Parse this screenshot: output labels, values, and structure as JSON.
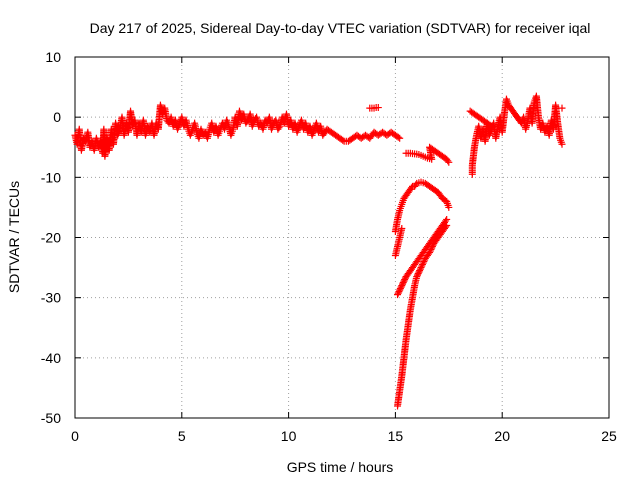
{
  "chart_data": {
    "type": "scatter",
    "title": "Day 217 of 2025, Sidereal Day-to-day VTEC variation (SDTVAR) for receiver iqal",
    "xlabel": "GPS time / hours",
    "ylabel": "SDTVAR / TECUs",
    "xlim": [
      0,
      25
    ],
    "ylim": [
      -50,
      10
    ],
    "x_ticks": [
      0,
      5,
      10,
      15,
      20,
      25
    ],
    "y_ticks": [
      10,
      0,
      -10,
      -20,
      -30,
      -40,
      -50
    ],
    "x_tick_labels": [
      "0",
      "5",
      "10",
      "15",
      "20",
      "25"
    ],
    "y_tick_labels": [
      "10",
      "0",
      "-10",
      "-20",
      "-30",
      "-40",
      "-50"
    ],
    "grid": true,
    "legend": "none",
    "marker": "plus",
    "series": [
      {
        "name": "SDTVAR",
        "color": "#ff0000",
        "points": [
          [
            0.0,
            -3.0
          ],
          [
            0.1,
            -4.5
          ],
          [
            0.2,
            -2.0
          ],
          [
            0.3,
            -5.5
          ],
          [
            0.4,
            -3.5
          ],
          [
            0.5,
            -4.0
          ],
          [
            0.6,
            -2.5
          ],
          [
            0.7,
            -5.0
          ],
          [
            0.8,
            -4.0
          ],
          [
            0.9,
            -5.5
          ],
          [
            1.0,
            -3.5
          ],
          [
            1.1,
            -5.0
          ],
          [
            1.2,
            -4.0
          ],
          [
            1.3,
            -6.0
          ],
          [
            1.35,
            -2.0
          ],
          [
            1.4,
            -6.5
          ],
          [
            1.5,
            -3.5
          ],
          [
            1.6,
            -5.5
          ],
          [
            1.7,
            -2.0
          ],
          [
            1.8,
            -4.5
          ],
          [
            1.9,
            -1.0
          ],
          [
            2.0,
            -3.0
          ],
          [
            2.1,
            -2.0
          ],
          [
            2.2,
            0.0
          ],
          [
            2.3,
            -3.0
          ],
          [
            2.4,
            -1.0
          ],
          [
            2.5,
            -2.5
          ],
          [
            2.6,
            1.0
          ],
          [
            2.7,
            -1.5
          ],
          [
            2.8,
            -0.5
          ],
          [
            2.9,
            -3.0
          ],
          [
            3.0,
            -1.0
          ],
          [
            3.1,
            -2.5
          ],
          [
            3.2,
            -0.5
          ],
          [
            3.3,
            -3.0
          ],
          [
            3.4,
            -1.5
          ],
          [
            3.5,
            -2.5
          ],
          [
            3.6,
            -1.0
          ],
          [
            3.7,
            -3.0
          ],
          [
            3.8,
            -1.0
          ],
          [
            3.9,
            -2.0
          ],
          [
            4.0,
            2.0
          ],
          [
            4.1,
            0.5
          ],
          [
            4.2,
            1.5
          ],
          [
            4.3,
            -0.5
          ],
          [
            4.4,
            -1.0
          ],
          [
            4.5,
            0.0
          ],
          [
            4.6,
            -1.5
          ],
          [
            4.7,
            -0.5
          ],
          [
            4.8,
            -2.0
          ],
          [
            4.9,
            -1.0
          ],
          [
            5.0,
            0.0
          ],
          [
            5.1,
            -1.5
          ],
          [
            5.2,
            -0.5
          ],
          [
            5.3,
            -2.0
          ],
          [
            5.4,
            -3.0
          ],
          [
            5.5,
            -2.0
          ],
          [
            5.6,
            -1.0
          ],
          [
            5.7,
            -2.5
          ],
          [
            5.8,
            -3.5
          ],
          [
            5.9,
            -2.0
          ],
          [
            6.0,
            -3.0
          ],
          [
            6.1,
            -2.5
          ],
          [
            6.2,
            -3.5
          ],
          [
            6.3,
            -2.0
          ],
          [
            6.4,
            -1.0
          ],
          [
            6.5,
            -2.5
          ],
          [
            6.6,
            -1.5
          ],
          [
            6.7,
            -3.0
          ],
          [
            6.8,
            -2.0
          ],
          [
            6.9,
            -1.0
          ],
          [
            7.0,
            -2.0
          ],
          [
            7.1,
            -0.5
          ],
          [
            7.2,
            -1.5
          ],
          [
            7.3,
            -3.0
          ],
          [
            7.4,
            -2.0
          ],
          [
            7.5,
            0.0
          ],
          [
            7.6,
            -1.5
          ],
          [
            7.7,
            1.0
          ],
          [
            7.8,
            -0.5
          ],
          [
            7.9,
            0.5
          ],
          [
            8.0,
            -1.0
          ],
          [
            8.1,
            -0.5
          ],
          [
            8.2,
            0.5
          ],
          [
            8.3,
            -1.5
          ],
          [
            8.4,
            -0.5
          ],
          [
            8.5,
            0.0
          ],
          [
            8.6,
            -1.5
          ],
          [
            8.7,
            -1.0
          ],
          [
            8.8,
            -2.0
          ],
          [
            8.9,
            -0.5
          ],
          [
            9.0,
            -1.0
          ],
          [
            9.1,
            0.0
          ],
          [
            9.2,
            -2.0
          ],
          [
            9.3,
            -1.0
          ],
          [
            9.4,
            -0.5
          ],
          [
            9.5,
            -2.0
          ],
          [
            9.6,
            -1.5
          ],
          [
            9.7,
            0.0
          ],
          [
            9.8,
            -1.0
          ],
          [
            9.9,
            0.5
          ],
          [
            10.0,
            -1.5
          ],
          [
            10.1,
            -0.5
          ],
          [
            10.2,
            -2.0
          ],
          [
            10.3,
            -1.0
          ],
          [
            10.4,
            -2.5
          ],
          [
            10.5,
            -1.5
          ],
          [
            10.6,
            -0.5
          ],
          [
            10.7,
            -2.0
          ],
          [
            10.8,
            -1.0
          ],
          [
            10.9,
            -2.5
          ],
          [
            11.0,
            -1.5
          ],
          [
            11.1,
            -3.0
          ],
          [
            11.2,
            -2.0
          ],
          [
            11.3,
            -1.0
          ],
          [
            11.4,
            -2.5
          ],
          [
            11.5,
            -1.5
          ],
          [
            11.6,
            -3.0
          ],
          [
            11.7,
            -2.5
          ],
          [
            11.8,
            -2.0
          ],
          [
            12.0,
            -2.5
          ],
          [
            12.2,
            -3.0
          ],
          [
            12.4,
            -3.5
          ],
          [
            12.6,
            -4.0
          ],
          [
            12.8,
            -4.0
          ],
          [
            13.0,
            -3.5
          ],
          [
            13.2,
            -3.0
          ],
          [
            13.4,
            -3.5
          ],
          [
            13.6,
            -3.0
          ],
          [
            13.8,
            -3.5
          ],
          [
            14.0,
            -2.5
          ],
          [
            14.2,
            -3.0
          ],
          [
            14.4,
            -2.5
          ],
          [
            14.6,
            -3.0
          ],
          [
            14.8,
            -2.5
          ],
          [
            15.0,
            -3.0
          ],
          [
            15.2,
            -3.5
          ],
          [
            13.8,
            1.5
          ],
          [
            13.9,
            1.5
          ],
          [
            14.0,
            1.5
          ],
          [
            14.1,
            1.6
          ],
          [
            14.2,
            1.6
          ],
          [
            15.5,
            -6.0
          ],
          [
            15.7,
            -6.0
          ],
          [
            15.9,
            -6.1
          ],
          [
            16.1,
            -6.2
          ],
          [
            16.3,
            -6.5
          ],
          [
            16.5,
            -6.8
          ],
          [
            16.7,
            -7.0
          ],
          [
            16.6,
            -5.0
          ],
          [
            16.8,
            -5.5
          ],
          [
            17.0,
            -6.0
          ],
          [
            17.2,
            -6.5
          ],
          [
            17.4,
            -7.0
          ],
          [
            17.5,
            -7.5
          ],
          [
            15.0,
            -19.0
          ],
          [
            15.1,
            -17.0
          ],
          [
            15.2,
            -15.5
          ],
          [
            15.3,
            -14.5
          ],
          [
            15.4,
            -13.5
          ],
          [
            15.5,
            -13.0
          ],
          [
            15.6,
            -12.5
          ],
          [
            15.7,
            -12.0
          ],
          [
            15.8,
            -11.5
          ],
          [
            15.9,
            -11.5
          ],
          [
            16.0,
            -11.0
          ],
          [
            16.2,
            -10.8
          ],
          [
            16.4,
            -11.0
          ],
          [
            16.6,
            -11.5
          ],
          [
            16.8,
            -12.0
          ],
          [
            17.0,
            -12.5
          ],
          [
            17.2,
            -13.5
          ],
          [
            17.4,
            -14.0
          ],
          [
            17.5,
            -15.0
          ],
          [
            15.0,
            -23.0
          ],
          [
            15.1,
            -21.5
          ],
          [
            15.2,
            -20.0
          ],
          [
            15.3,
            -18.5
          ],
          [
            15.1,
            -29.5
          ],
          [
            15.3,
            -28.0
          ],
          [
            15.5,
            -26.5
          ],
          [
            15.7,
            -25.5
          ],
          [
            15.9,
            -24.5
          ],
          [
            16.1,
            -23.5
          ],
          [
            16.3,
            -22.5
          ],
          [
            16.5,
            -21.5
          ],
          [
            16.7,
            -20.5
          ],
          [
            16.9,
            -19.5
          ],
          [
            17.1,
            -18.5
          ],
          [
            17.3,
            -17.5
          ],
          [
            17.4,
            -17.0
          ],
          [
            15.1,
            -48.0
          ],
          [
            15.2,
            -45.5
          ],
          [
            15.3,
            -43.0
          ],
          [
            15.4,
            -40.0
          ],
          [
            15.5,
            -37.0
          ],
          [
            15.6,
            -34.5
          ],
          [
            15.7,
            -32.0
          ],
          [
            15.8,
            -30.0
          ],
          [
            15.9,
            -28.0
          ],
          [
            16.0,
            -26.5
          ],
          [
            16.2,
            -25.0
          ],
          [
            16.4,
            -23.5
          ],
          [
            16.6,
            -22.5
          ],
          [
            16.8,
            -21.0
          ],
          [
            17.0,
            -20.0
          ],
          [
            17.2,
            -19.0
          ],
          [
            17.4,
            -18.0
          ],
          [
            18.5,
            1.0
          ],
          [
            18.7,
            0.5
          ],
          [
            18.9,
            0.0
          ],
          [
            19.1,
            -0.5
          ],
          [
            19.3,
            -1.0
          ],
          [
            19.5,
            -1.5
          ],
          [
            18.6,
            -9.5
          ],
          [
            18.6,
            -8.0
          ],
          [
            18.7,
            -5.0
          ],
          [
            18.8,
            -3.0
          ],
          [
            18.9,
            -1.5
          ],
          [
            19.0,
            -3.5
          ],
          [
            19.1,
            -2.0
          ],
          [
            19.2,
            -4.0
          ],
          [
            19.3,
            -1.0
          ],
          [
            19.4,
            -3.0
          ],
          [
            19.5,
            -2.0
          ],
          [
            19.6,
            -1.0
          ],
          [
            19.7,
            -3.5
          ],
          [
            19.8,
            -1.5
          ],
          [
            19.9,
            0.0
          ],
          [
            20.0,
            -2.5
          ],
          [
            20.1,
            0.5
          ],
          [
            20.2,
            3.0
          ],
          [
            20.3,
            2.0
          ],
          [
            20.9,
            -1.0
          ],
          [
            21.0,
            0.0
          ],
          [
            21.1,
            -2.0
          ],
          [
            21.2,
            -0.5
          ],
          [
            21.3,
            1.5
          ],
          [
            21.4,
            -1.0
          ],
          [
            21.5,
            2.5
          ],
          [
            21.6,
            3.5
          ],
          [
            21.7,
            0.0
          ],
          [
            21.8,
            -2.0
          ],
          [
            21.9,
            -1.0
          ],
          [
            22.0,
            -2.5
          ],
          [
            22.1,
            -1.5
          ],
          [
            22.2,
            -3.0
          ],
          [
            22.3,
            -0.5
          ],
          [
            22.4,
            -2.0
          ],
          [
            22.5,
            2.0
          ],
          [
            22.6,
            -1.0
          ],
          [
            22.7,
            -3.5
          ],
          [
            22.8,
            -4.5
          ],
          [
            22.8,
            1.5
          ]
        ]
      }
    ]
  }
}
